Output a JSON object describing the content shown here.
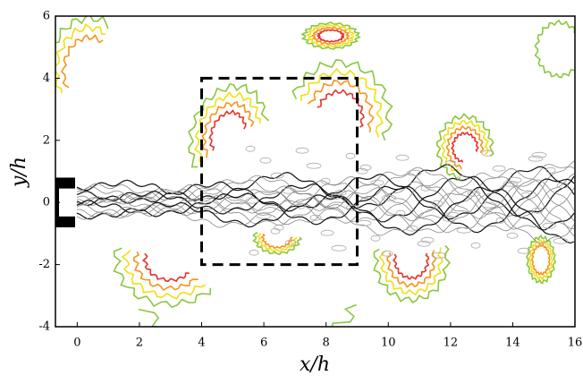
{
  "chart_data": {
    "type": "contour",
    "x_label": "x/h",
    "y_label": "y/h",
    "xlim": [
      -0.7,
      16
    ],
    "ylim": [
      -4,
      6
    ],
    "xticks": [
      0,
      2,
      4,
      6,
      8,
      10,
      12,
      14,
      16
    ],
    "yticks": [
      -4,
      -2,
      0,
      2,
      4,
      6
    ],
    "highlight_box": {
      "x": [
        4,
        9
      ],
      "y": [
        -2,
        4
      ]
    }
  }
}
